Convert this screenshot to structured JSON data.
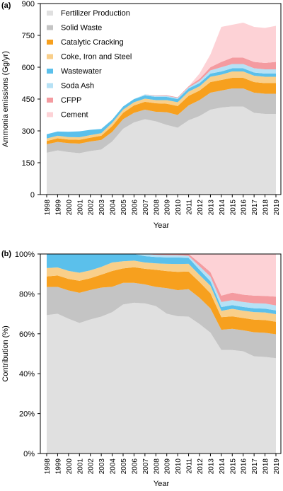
{
  "chart_data": [
    {
      "panel_label": "(a)",
      "type": "area",
      "stacked": true,
      "xlabel": "Year",
      "ylabel": "Ammonia emissions (Gg/yr)",
      "ylim": [
        0,
        900
      ],
      "yticks": [
        0,
        150,
        300,
        450,
        600,
        750,
        900
      ],
      "x": [
        1998,
        1999,
        2000,
        2001,
        2002,
        2003,
        2004,
        2005,
        2006,
        2007,
        2008,
        2009,
        2010,
        2011,
        2012,
        2013,
        2014,
        2015,
        2016,
        2017,
        2018,
        2019
      ],
      "legend_position": "top-left",
      "series": [
        {
          "name": "Fertilizer Production",
          "color": "#e0e0e0",
          "values": [
            197,
            208,
            200,
            195,
            205,
            212,
            250,
            310,
            340,
            355,
            345,
            328,
            315,
            350,
            370,
            400,
            410,
            415,
            415,
            385,
            380,
            380
          ]
        },
        {
          "name": "Solid Waste",
          "color": "#c4c4c4",
          "values": [
            40,
            40,
            42,
            45,
            45,
            45,
            45,
            45,
            45,
            45,
            45,
            60,
            60,
            70,
            75,
            80,
            80,
            85,
            85,
            95,
            95,
            95
          ]
        },
        {
          "name": "Catalytic Cracking",
          "color": "#f7a01e",
          "values": [
            15,
            17,
            17,
            18,
            18,
            20,
            28,
            30,
            35,
            37,
            40,
            40,
            42,
            45,
            45,
            50,
            50,
            50,
            50,
            50,
            50,
            50
          ]
        },
        {
          "name": "Coke, Iron and Steel",
          "color": "#f9cf8a",
          "values": [
            12,
            12,
            12,
            12,
            12,
            12,
            15,
            15,
            15,
            15,
            15,
            17,
            18,
            20,
            20,
            25,
            25,
            30,
            30,
            30,
            30,
            30
          ]
        },
        {
          "name": "Wastewater",
          "color": "#5bc0eb",
          "values": [
            20,
            20,
            25,
            28,
            25,
            20,
            15,
            15,
            15,
            15,
            15,
            15,
            15,
            15,
            15,
            15,
            15,
            15,
            15,
            15,
            15,
            15
          ]
        },
        {
          "name": "Soda Ash",
          "color": "#b6e1f5",
          "values": [
            0,
            0,
            0,
            0,
            0,
            0,
            0,
            0,
            0,
            5,
            5,
            5,
            5,
            5,
            10,
            15,
            20,
            20,
            20,
            20,
            20,
            20
          ]
        },
        {
          "name": "CFPP",
          "color": "#f49ba0",
          "values": [
            0,
            0,
            0,
            0,
            0,
            0,
            0,
            0,
            0,
            0,
            2,
            3,
            3,
            5,
            10,
            15,
            25,
            30,
            30,
            30,
            30,
            35
          ]
        },
        {
          "name": "Cement",
          "color": "#fdd2d6",
          "values": [
            0,
            0,
            0,
            0,
            0,
            0,
            0,
            0,
            0,
            0,
            0,
            0,
            0,
            0,
            25,
            60,
            165,
            155,
            165,
            165,
            165,
            170
          ]
        }
      ]
    },
    {
      "panel_label": "(b)",
      "type": "area",
      "stacked": true,
      "percent": true,
      "xlabel": "Year",
      "ylabel": "Contribution (%)",
      "ylim": [
        0,
        100
      ],
      "yticks": [
        "0%",
        "20%",
        "40%",
        "60%",
        "80%",
        "100%"
      ],
      "x": [
        1998,
        1999,
        2000,
        2001,
        2002,
        2003,
        2004,
        2005,
        2006,
        2007,
        2008,
        2009,
        2010,
        2011,
        2012,
        2013,
        2014,
        2015,
        2016,
        2017,
        2018,
        2019
      ],
      "series_ref": "same series as (a)"
    }
  ]
}
